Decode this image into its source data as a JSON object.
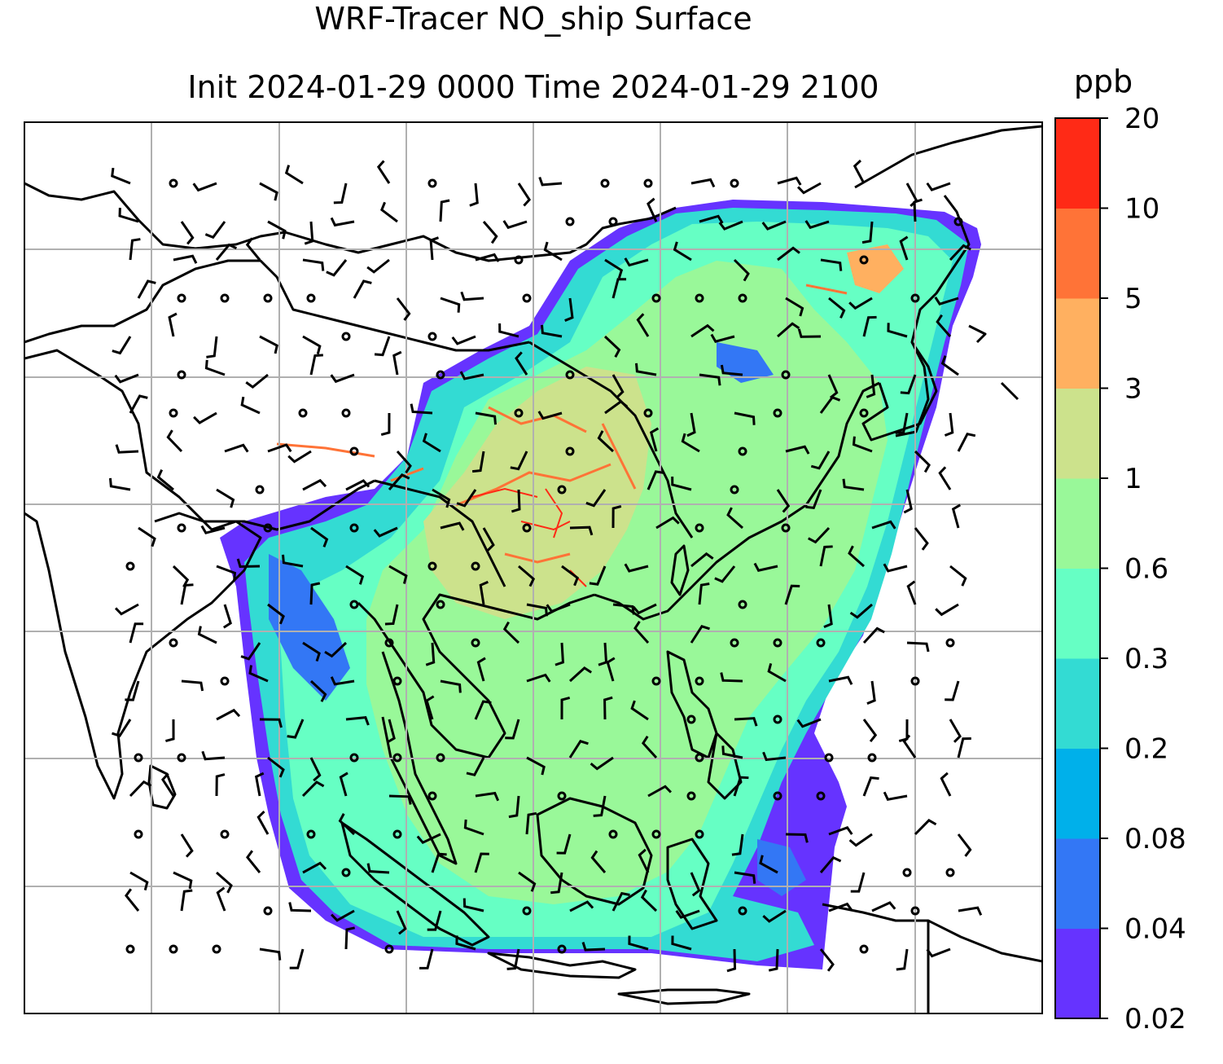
{
  "title_line1": "WRF-Tracer NO_ship Surface",
  "title_line2": "Init 2024-01-29 0000 Time 2024-01-29 2100",
  "colorbar": {
    "unit": "ppb",
    "labels": [
      "0.02",
      "0.04",
      "0.08",
      "0.2",
      "0.3",
      "0.6",
      "1",
      "3",
      "5",
      "10",
      "20"
    ],
    "colors": [
      "#6633ff",
      "#3377f5",
      "#00b0ea",
      "#33dbd3",
      "#66ffc4",
      "#99f899",
      "#cce28c",
      "#ffb060",
      "#ff7337",
      "#ff2a16"
    ]
  },
  "map": {
    "field": "NO_ship surface concentration",
    "ocean_color": "#ffffff",
    "wind_barbs": true,
    "gridlines": true,
    "coastlines": true
  }
}
